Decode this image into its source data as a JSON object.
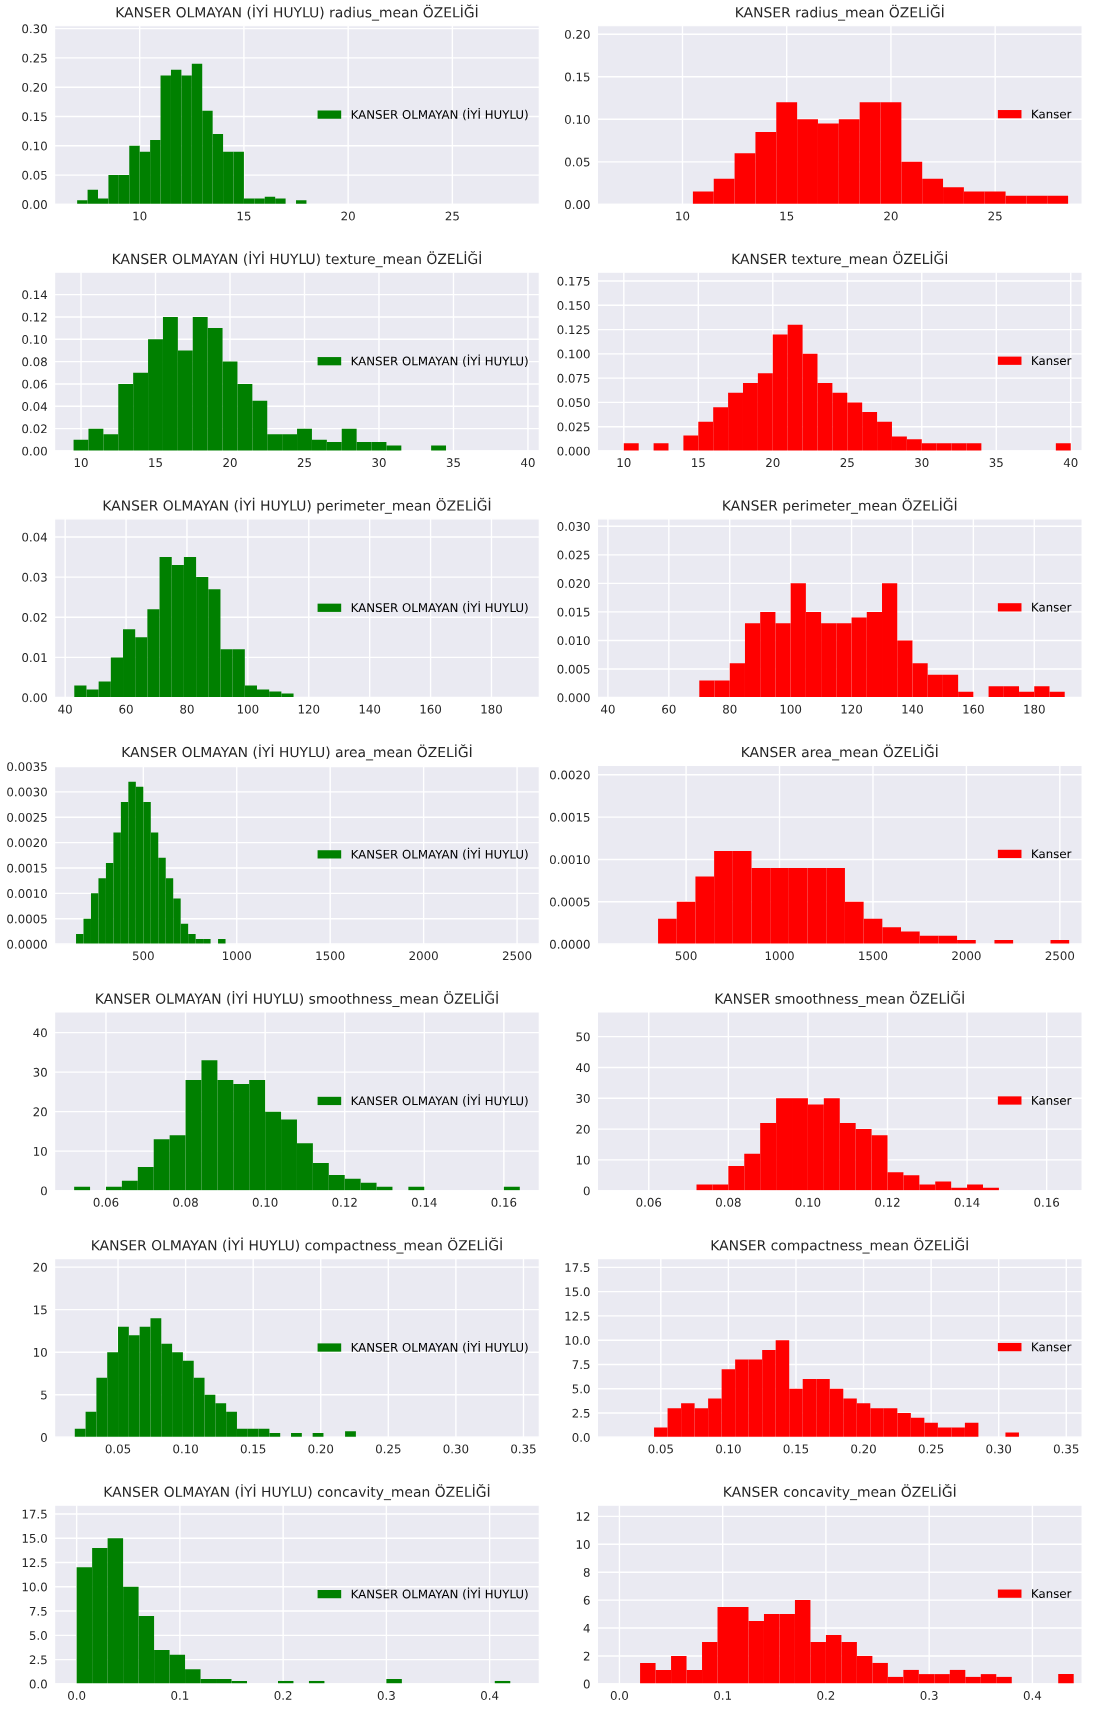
{
  "chart_data": [
    {
      "type": "histogram",
      "title": "KANSER OLMAYAN (İYİ HUYLU) radius_mean ÖZELİĞİ",
      "bins": [
        7,
        7.5,
        8,
        8.5,
        9,
        9.5,
        10,
        10.5,
        11,
        11.5,
        12,
        12.5,
        13,
        13.5,
        14,
        14.5,
        15,
        15.5,
        16,
        16.5,
        17,
        17.5,
        18
      ],
      "series": [
        {
          "name": "KANSER OLMAYAN (İYİ HUYLU)",
          "color": "#008000",
          "values": [
            0.007,
            0.025,
            0.01,
            0.05,
            0.05,
            0.1,
            0.09,
            0.11,
            0.22,
            0.23,
            0.22,
            0.24,
            0.16,
            0.12,
            0.09,
            0.09,
            0.01,
            0.01,
            0.013,
            0.01,
            0,
            0.007
          ]
        }
      ],
      "xlim": [
        5.92,
        29.17
      ],
      "xticks": [
        10,
        15,
        20,
        25
      ],
      "ylim": [
        0,
        0.305
      ],
      "yticks": [
        {
          "value": 0,
          "label": "0.00"
        },
        0.05,
        {
          "value": 0.1,
          "label": "0.10"
        },
        0.15,
        {
          "value": 0.2,
          "label": "0.20"
        },
        0.25,
        {
          "value": 0.3,
          "label": "0.30"
        }
      ],
      "grid": true,
      "legend": "right"
    },
    {
      "type": "histogram",
      "title": "KANSER radius_mean ÖZELİĞİ",
      "bins": [
        10.5,
        11.5,
        12.5,
        13.5,
        14.5,
        15.5,
        16.5,
        17.5,
        18.5,
        19.5,
        20.5,
        21.5,
        22.5,
        23.5,
        24.5,
        25.5,
        26.5,
        27.5,
        28.5
      ],
      "series": [
        {
          "name": "Kanser",
          "color": "#ff0000",
          "values": [
            0.015,
            0.03,
            0.06,
            0.085,
            0.12,
            0.1,
            0.095,
            0.1,
            0.12,
            0.12,
            0.05,
            0.03,
            0.02,
            0.015,
            0.015,
            0.01,
            0.01,
            0.01
          ]
        }
      ],
      "xlim": [
        5.92,
        29.17
      ],
      "xticks": [
        10,
        15,
        20,
        25
      ],
      "ylim": [
        0,
        0.21
      ],
      "yticks": [
        {
          "value": 0,
          "label": "0.00"
        },
        0.05,
        {
          "value": 0.1,
          "label": "0.10"
        },
        0.15,
        {
          "value": 0.2,
          "label": "0.20"
        }
      ],
      "grid": true,
      "legend": "right"
    },
    {
      "type": "histogram",
      "title": "KANSER OLMAYAN (İYİ HUYLU) texture_mean ÖZELİĞİ",
      "bins": [
        9.5,
        10.5,
        11.5,
        12.5,
        13.5,
        14.5,
        15.5,
        16.5,
        17.5,
        18.5,
        19.5,
        20.5,
        21.5,
        22.5,
        23.5,
        24.5,
        25.5,
        26.5,
        27.5,
        28.5,
        29.5,
        30.5,
        31.5,
        32.5,
        33.5,
        34.5
      ],
      "series": [
        {
          "name": "KANSER OLMAYAN (İYİ HUYLU)",
          "color": "#008000",
          "values": [
            0.01,
            0.02,
            0.015,
            0.06,
            0.07,
            0.1,
            0.12,
            0.09,
            0.12,
            0.11,
            0.08,
            0.06,
            0.045,
            0.015,
            0.015,
            0.02,
            0.01,
            0.008,
            0.02,
            0.008,
            0.008,
            0.005,
            0,
            0,
            0.005
          ]
        }
      ],
      "xlim": [
        8.23,
        40.76
      ],
      "xticks": [
        10,
        15,
        20,
        25,
        30,
        35,
        40
      ],
      "ylim": [
        0,
        0.16
      ],
      "yticks": [
        {
          "value": 0,
          "label": "0.00"
        },
        0.02,
        0.04,
        0.06,
        0.08,
        {
          "value": 0.1,
          "label": "0.10"
        },
        0.12,
        0.14
      ],
      "grid": true,
      "legend": "right"
    },
    {
      "type": "histogram",
      "title": "KANSER texture_mean ÖZELİĞİ",
      "bins": [
        10,
        11,
        12,
        13,
        14,
        15,
        16,
        17,
        18,
        19,
        20,
        21,
        22,
        23,
        24,
        25,
        26,
        27,
        28,
        29,
        30,
        31,
        32,
        33,
        34,
        35,
        36,
        37,
        38,
        39,
        40
      ],
      "series": [
        {
          "name": "Kanser",
          "color": "#ff0000",
          "values": [
            0.008,
            0,
            0.008,
            0,
            0.016,
            0.03,
            0.045,
            0.06,
            0.07,
            0.08,
            0.12,
            0.13,
            0.1,
            0.07,
            0.06,
            0.05,
            0.04,
            0.03,
            0.015,
            0.012,
            0.008,
            0.008,
            0.008,
            0.008,
            0,
            0,
            0,
            0,
            0,
            0.008
          ]
        }
      ],
      "xlim": [
        8.23,
        40.76
      ],
      "xticks": [
        10,
        15,
        20,
        25,
        30,
        35,
        40
      ],
      "ylim": [
        0,
        0.184
      ],
      "yticks": [
        {
          "value": 0,
          "label": "0.000"
        },
        0.025,
        {
          "value": 0.05,
          "label": "0.050"
        },
        0.075,
        {
          "value": 0.1,
          "label": "0.100"
        },
        0.125,
        {
          "value": 0.15,
          "label": "0.150"
        },
        0.175
      ],
      "grid": true,
      "legend": "right"
    },
    {
      "type": "histogram",
      "title": "KANSER OLMAYAN (İYİ HUYLU) perimeter_mean ÖZELİĞİ",
      "bins": [
        43,
        47,
        51,
        55,
        59,
        63,
        67,
        71,
        75,
        79,
        83,
        87,
        91,
        95,
        99,
        103,
        107,
        111,
        115
      ],
      "series": [
        {
          "name": "KANSER OLMAYAN (İYİ HUYLU)",
          "color": "#008000",
          "values": [
            0.003,
            0.002,
            0.004,
            0.01,
            0.017,
            0.015,
            0.022,
            0.035,
            0.033,
            0.035,
            0.03,
            0.027,
            0.012,
            0.012,
            0.003,
            0.002,
            0.0015,
            0.001
          ]
        }
      ],
      "xlim": [
        36.55,
        195.7
      ],
      "xticks": [
        40,
        60,
        80,
        100,
        120,
        140,
        160,
        180
      ],
      "ylim": [
        0,
        0.0445
      ],
      "yticks": [
        {
          "value": 0,
          "label": "0.00"
        },
        0.01,
        0.02,
        0.03,
        0.04
      ],
      "grid": true,
      "legend": "right"
    },
    {
      "type": "histogram",
      "title": "KANSER perimeter_mean ÖZELİĞİ",
      "bins": [
        70,
        75,
        80,
        85,
        90,
        95,
        100,
        105,
        110,
        115,
        120,
        125,
        130,
        135,
        140,
        145,
        150,
        155,
        160,
        165,
        170,
        175,
        180,
        185,
        190
      ],
      "series": [
        {
          "name": "Kanser",
          "color": "#ff0000",
          "values": [
            0.003,
            0.003,
            0.006,
            0.013,
            0.015,
            0.013,
            0.02,
            0.015,
            0.013,
            0.013,
            0.014,
            0.015,
            0.02,
            0.01,
            0.006,
            0.004,
            0.004,
            0.001,
            0,
            0.002,
            0.002,
            0.001,
            0.002,
            0.001
          ]
        }
      ],
      "xlim": [
        36.55,
        195.7
      ],
      "xticks": [
        40,
        60,
        80,
        100,
        120,
        140,
        160,
        180
      ],
      "ylim": [
        0,
        0.0313
      ],
      "yticks": [
        {
          "value": 0,
          "label": "0.000"
        },
        0.005,
        {
          "value": 0.01,
          "label": "0.010"
        },
        0.015,
        {
          "value": 0.02,
          "label": "0.020"
        },
        0.025,
        {
          "value": 0.03,
          "label": "0.030"
        }
      ],
      "grid": true,
      "legend": "right"
    },
    {
      "type": "histogram",
      "title": "KANSER OLMAYAN (İYİ HUYLU) area_mean ÖZELİĞİ",
      "bins": [
        140,
        180,
        220,
        260,
        300,
        340,
        380,
        420,
        460,
        500,
        540,
        580,
        620,
        660,
        700,
        740,
        780,
        820,
        860,
        900,
        940
      ],
      "series": [
        {
          "name": "KANSER OLMAYAN (İYİ HUYLU)",
          "color": "#008000",
          "values": [
            0.0002,
            0.0005,
            0.001,
            0.0013,
            0.0016,
            0.0022,
            0.0028,
            0.0032,
            0.0031,
            0.0028,
            0.0022,
            0.0017,
            0.0013,
            0.0009,
            0.0004,
            0.0002,
            0.0001,
            0.0001,
            0,
            0.0001
          ]
        }
      ],
      "xlim": [
        25.6,
        2618.9
      ],
      "xticks": [
        500,
        1000,
        1500,
        2000,
        2500
      ],
      "ylim": [
        0,
        0.00352
      ],
      "yticks": [
        {
          "value": 0,
          "label": "0.0000"
        },
        {
          "value": 0.0005,
          "label": "0.0005"
        },
        {
          "value": 0.001,
          "label": "0.0010"
        },
        {
          "value": 0.0015,
          "label": "0.0015"
        },
        {
          "value": 0.002,
          "label": "0.0020"
        },
        {
          "value": 0.0025,
          "label": "0.0025"
        },
        {
          "value": 0.003,
          "label": "0.0030"
        },
        {
          "value": 0.0035,
          "label": "0.0035"
        }
      ],
      "grid": true,
      "legend": "right"
    },
    {
      "type": "histogram",
      "title": "KANSER area_mean ÖZELİĞİ",
      "bins": [
        350,
        450,
        550,
        650,
        750,
        850,
        950,
        1050,
        1150,
        1250,
        1350,
        1450,
        1550,
        1650,
        1750,
        1850,
        1950,
        2050,
        2150,
        2250,
        2350,
        2450,
        2550
      ],
      "series": [
        {
          "name": "Kanser",
          "color": "#ff0000",
          "values": [
            0.0003,
            0.0005,
            0.0008,
            0.0011,
            0.0011,
            0.0009,
            0.0009,
            0.0009,
            0.0009,
            0.0009,
            0.0005,
            0.0003,
            0.0002,
            0.00015,
            0.0001,
            0.0001,
            5e-05,
            0,
            5e-05,
            0,
            0,
            5e-05
          ]
        }
      ],
      "xlim": [
        25.6,
        2618.9
      ],
      "xticks": [
        500,
        1000,
        1500,
        2000,
        2500
      ],
      "ylim": [
        0,
        0.00211
      ],
      "yticks": [
        {
          "value": 0,
          "label": "0.0000"
        },
        {
          "value": 0.0005,
          "label": "0.0005"
        },
        {
          "value": 0.001,
          "label": "0.0010"
        },
        {
          "value": 0.0015,
          "label": "0.0015"
        },
        {
          "value": 0.002,
          "label": "0.0020"
        }
      ],
      "grid": true,
      "legend": "right"
    },
    {
      "type": "histogram",
      "title": "KANSER OLMAYAN (İYİ HUYLU) smoothness_mean ÖZELİĞİ",
      "bins": [
        0.052,
        0.056,
        0.06,
        0.064,
        0.068,
        0.072,
        0.076,
        0.08,
        0.084,
        0.088,
        0.092,
        0.096,
        0.1,
        0.104,
        0.108,
        0.112,
        0.116,
        0.12,
        0.124,
        0.128,
        0.132,
        0.136,
        0.14,
        0.144,
        0.148,
        0.152,
        0.156,
        0.16,
        0.164
      ],
      "series": [
        {
          "name": "KANSER OLMAYAN (İYİ HUYLU)",
          "color": "#008000",
          "values": [
            1,
            0,
            1,
            2.5,
            6,
            13,
            14,
            28,
            33,
            28,
            27,
            28,
            20,
            18,
            12,
            7,
            4,
            3,
            2,
            1,
            0,
            1,
            0,
            0,
            0,
            0,
            0,
            1
          ]
        }
      ],
      "xlim": [
        0.0471,
        0.1689
      ],
      "xticks": [
        0.06,
        0.08,
        {
          "value": 0.1,
          "label": "0.10"
        },
        0.12,
        0.14,
        0.16
      ],
      "ylim": [
        0,
        45.2
      ],
      "yticks": [
        0,
        10,
        20,
        30,
        40
      ],
      "grid": true,
      "legend": "right"
    },
    {
      "type": "histogram",
      "title": "KANSER smoothness_mean ÖZELİĞİ",
      "bins": [
        0.072,
        0.076,
        0.08,
        0.084,
        0.088,
        0.092,
        0.096,
        0.1,
        0.104,
        0.108,
        0.112,
        0.116,
        0.12,
        0.124,
        0.128,
        0.132,
        0.136,
        0.14,
        0.144,
        0.148
      ],
      "series": [
        {
          "name": "Kanser",
          "color": "#ff0000",
          "values": [
            2,
            2,
            8,
            12,
            22,
            30,
            30,
            28,
            30,
            22,
            20,
            18,
            6,
            5,
            2,
            3,
            1,
            2,
            1
          ]
        }
      ],
      "xlim": [
        0.0471,
        0.1689
      ],
      "xticks": [
        0.06,
        0.08,
        {
          "value": 0.1,
          "label": "0.10"
        },
        0.12,
        0.14,
        0.16
      ],
      "ylim": [
        0,
        58
      ],
      "yticks": [
        0,
        10,
        20,
        30,
        40,
        50
      ],
      "grid": true,
      "legend": "right"
    },
    {
      "type": "histogram",
      "title": "KANSER OLMAYAN (İYİ HUYLU) compactness_mean ÖZELİĞİ",
      "bins": [
        0.018,
        0.026,
        0.034,
        0.042,
        0.05,
        0.058,
        0.066,
        0.074,
        0.082,
        0.09,
        0.098,
        0.106,
        0.114,
        0.122,
        0.13,
        0.138,
        0.146,
        0.154,
        0.162,
        0.17,
        0.178,
        0.186,
        0.194,
        0.202,
        0.21,
        0.218,
        0.226
      ],
      "series": [
        {
          "name": "KANSER OLMAYAN (İYİ HUYLU)",
          "color": "#008000",
          "values": [
            1,
            3,
            7,
            10,
            13,
            12,
            13,
            14,
            11,
            10,
            9,
            7,
            5,
            4,
            3,
            1,
            1,
            1,
            0.5,
            0,
            0.5,
            0,
            0.5,
            0,
            0,
            0.7
          ]
        }
      ],
      "xlim": [
        0.0031,
        0.3617
      ],
      "xticks": [
        0.05,
        {
          "value": 0.1,
          "label": "0.10"
        },
        0.15,
        {
          "value": 0.2,
          "label": "0.20"
        },
        0.25,
        {
          "value": 0.3,
          "label": "0.30"
        },
        0.35
      ],
      "ylim": [
        0,
        21
      ],
      "yticks": [
        0,
        5,
        10,
        15,
        20
      ],
      "grid": true,
      "legend": "right"
    },
    {
      "type": "histogram",
      "title": "KANSER compactness_mean ÖZELİĞİ",
      "bins": [
        0.045,
        0.055,
        0.065,
        0.075,
        0.085,
        0.095,
        0.105,
        0.115,
        0.125,
        0.135,
        0.145,
        0.155,
        0.165,
        0.175,
        0.185,
        0.195,
        0.205,
        0.215,
        0.225,
        0.235,
        0.245,
        0.255,
        0.265,
        0.275,
        0.285,
        0.295,
        0.305,
        0.315
      ],
      "series": [
        {
          "name": "Kanser",
          "color": "#ff0000",
          "values": [
            1,
            3,
            3.5,
            3,
            4,
            7,
            8,
            8,
            9,
            10,
            5,
            6,
            6,
            5,
            4,
            3.5,
            3,
            3,
            2.5,
            2,
            1.5,
            1,
            1,
            1.5,
            0,
            0,
            0.5
          ]
        }
      ],
      "xlim": [
        0.0031,
        0.3617
      ],
      "xticks": [
        0.05,
        {
          "value": 0.1,
          "label": "0.10"
        },
        0.15,
        {
          "value": 0.2,
          "label": "0.20"
        },
        0.25,
        {
          "value": 0.3,
          "label": "0.30"
        },
        0.35
      ],
      "ylim": [
        0,
        18.4
      ],
      "yticks": [
        {
          "value": 0,
          "label": "0.0"
        },
        2.5,
        {
          "value": 5,
          "label": "5.0"
        },
        7.5,
        {
          "value": 10,
          "label": "10.0"
        },
        12.5,
        {
          "value": 15,
          "label": "15.0"
        },
        17.5
      ],
      "grid": true,
      "legend": "right"
    },
    {
      "type": "histogram",
      "title": "KANSER OLMAYAN (İYİ HUYLU) concavity_mean ÖZELİĞİ",
      "bins": [
        0,
        0.015,
        0.03,
        0.045,
        0.06,
        0.075,
        0.09,
        0.105,
        0.12,
        0.135,
        0.15,
        0.165,
        0.18,
        0.195,
        0.21,
        0.225,
        0.24,
        0.255,
        0.27,
        0.285,
        0.3,
        0.315,
        0.33,
        0.345,
        0.36,
        0.375,
        0.39,
        0.405,
        0.42
      ],
      "series": [
        {
          "name": "KANSER OLMAYAN (İYİ HUYLU)",
          "color": "#008000",
          "values": [
            12,
            14,
            15,
            10,
            7,
            3.5,
            3,
            1.5,
            0.5,
            0.5,
            0.3,
            0,
            0,
            0.3,
            0,
            0.3,
            0,
            0,
            0,
            0,
            0.5,
            0,
            0,
            0,
            0,
            0,
            0,
            0.3
          ]
        }
      ],
      "xlim": [
        -0.0213,
        0.4481
      ],
      "xticks": [
        {
          "value": 0,
          "label": "0.0"
        },
        0.1,
        0.2,
        0.3,
        0.4
      ],
      "ylim": [
        0,
        18.4
      ],
      "yticks": [
        {
          "value": 0,
          "label": "0.0"
        },
        2.5,
        {
          "value": 5,
          "label": "5.0"
        },
        7.5,
        {
          "value": 10,
          "label": "10.0"
        },
        12.5,
        {
          "value": 15,
          "label": "15.0"
        },
        17.5
      ],
      "grid": true,
      "legend": "right"
    },
    {
      "type": "histogram",
      "title": "KANSER concavity_mean ÖZELİĞİ",
      "bins": [
        0.02,
        0.035,
        0.05,
        0.065,
        0.08,
        0.095,
        0.11,
        0.125,
        0.14,
        0.155,
        0.17,
        0.185,
        0.2,
        0.215,
        0.23,
        0.245,
        0.26,
        0.275,
        0.29,
        0.305,
        0.32,
        0.335,
        0.35,
        0.365,
        0.38,
        0.395,
        0.41,
        0.425,
        0.44
      ],
      "series": [
        {
          "name": "Kanser",
          "color": "#ff0000",
          "values": [
            1.5,
            1,
            2,
            1,
            3,
            5.5,
            5.5,
            4.5,
            5,
            5,
            6,
            3,
            3.5,
            3,
            2,
            1.5,
            0.5,
            1,
            0.7,
            0.7,
            1,
            0.5,
            0.7,
            0.5,
            0,
            0,
            0,
            0.7
          ]
        }
      ],
      "xlim": [
        -0.0213,
        0.4481
      ],
      "xticks": [
        {
          "value": 0,
          "label": "0.0"
        },
        0.1,
        0.2,
        0.3,
        0.4
      ],
      "ylim": [
        0,
        12.8
      ],
      "yticks": [
        0,
        2,
        4,
        6,
        8,
        10,
        12
      ],
      "grid": true,
      "legend": "right"
    }
  ]
}
